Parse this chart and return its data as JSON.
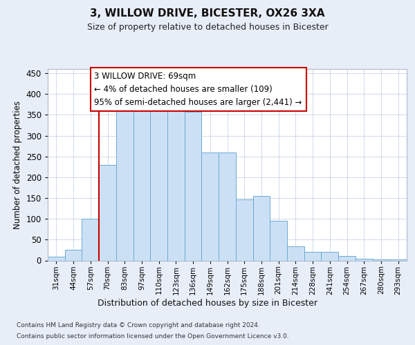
{
  "title": "3, WILLOW DRIVE, BICESTER, OX26 3XA",
  "subtitle": "Size of property relative to detached houses in Bicester",
  "xlabel": "Distribution of detached houses by size in Bicester",
  "ylabel": "Number of detached properties",
  "footnote1": "Contains HM Land Registry data © Crown copyright and database right 2024.",
  "footnote2": "Contains public sector information licensed under the Open Government Licence v3.0.",
  "annotation_line1": "3 WILLOW DRIVE: 69sqm",
  "annotation_line2": "← 4% of detached houses are smaller (109)",
  "annotation_line3": "95% of semi-detached houses are larger (2,441) →",
  "bar_color": "#cce0f5",
  "bar_edge_color": "#6aaad4",
  "vline_color": "#cc0000",
  "vline_x_idx": 2.5,
  "categories": [
    "31sqm",
    "44sqm",
    "57sqm",
    "70sqm",
    "83sqm",
    "97sqm",
    "110sqm",
    "123sqm",
    "136sqm",
    "149sqm",
    "162sqm",
    "175sqm",
    "188sqm",
    "201sqm",
    "214sqm",
    "228sqm",
    "241sqm",
    "254sqm",
    "267sqm",
    "280sqm",
    "293sqm"
  ],
  "values": [
    9,
    25,
    100,
    229,
    365,
    370,
    375,
    375,
    357,
    260,
    260,
    147,
    155,
    95,
    34,
    21,
    21,
    10,
    4,
    3,
    2
  ],
  "ylim": [
    0,
    460
  ],
  "yticks": [
    0,
    50,
    100,
    150,
    200,
    250,
    300,
    350,
    400,
    450
  ],
  "bg_color": "#e8eef8",
  "plot_bg_color": "#ffffff",
  "title_fontsize": 11,
  "subtitle_fontsize": 9,
  "ylabel_fontsize": 8.5,
  "xlabel_fontsize": 9,
  "ytick_fontsize": 8.5,
  "xtick_fontsize": 7.5,
  "annot_fontsize": 8.5,
  "footnote_fontsize": 6.5
}
